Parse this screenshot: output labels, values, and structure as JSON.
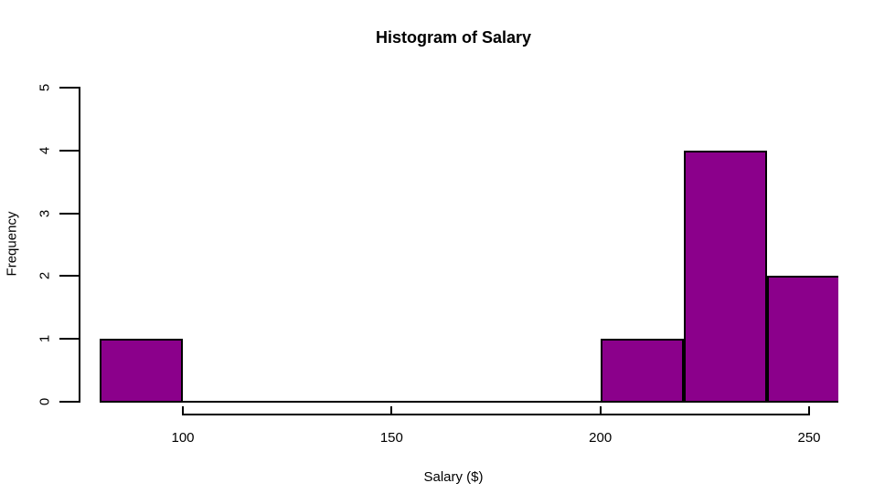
{
  "chart_data": {
    "type": "bar",
    "subtype": "histogram",
    "title": "Histogram of Salary",
    "xlabel": "Salary ($)",
    "ylabel": "Frequency",
    "bins": [
      {
        "x0": 80,
        "x1": 100,
        "count": 1
      },
      {
        "x0": 100,
        "x1": 120,
        "count": 0
      },
      {
        "x0": 120,
        "x1": 140,
        "count": 0
      },
      {
        "x0": 140,
        "x1": 160,
        "count": 0
      },
      {
        "x0": 160,
        "x1": 180,
        "count": 0
      },
      {
        "x0": 180,
        "x1": 200,
        "count": 0
      },
      {
        "x0": 200,
        "x1": 220,
        "count": 1
      },
      {
        "x0": 220,
        "x1": 240,
        "count": 4
      },
      {
        "x0": 240,
        "x1": 260,
        "count": 2
      }
    ],
    "x_ticks": [
      "100",
      "150",
      "200",
      "250"
    ],
    "x_tick_values": [
      100,
      150,
      200,
      250
    ],
    "y_ticks": [
      "0",
      "1",
      "2",
      "3",
      "4",
      "5"
    ],
    "y_tick_values": [
      0,
      1,
      2,
      3,
      4,
      5
    ],
    "xlim": [
      80,
      260
    ],
    "ylim": [
      0,
      5
    ],
    "grid": false,
    "legend": "none",
    "colors": {
      "bar_fill": "#8B008B",
      "bar_border": "#000000",
      "axis": "#000000",
      "text": "#000000",
      "background": "#ffffff"
    }
  }
}
